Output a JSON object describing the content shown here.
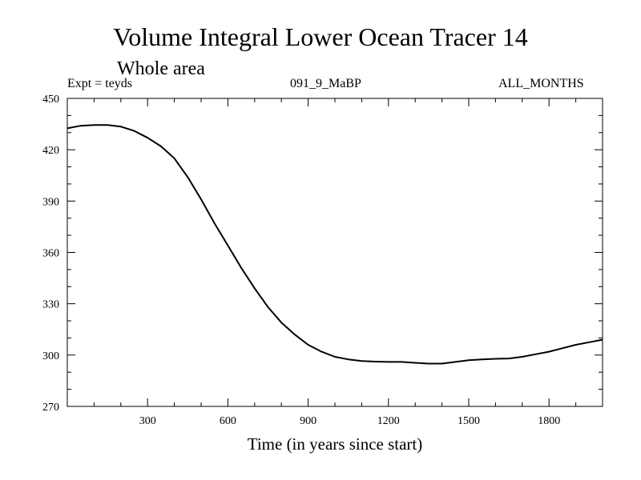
{
  "chart_data": {
    "type": "line",
    "title": "Volume Integral Lower Ocean Tracer 14",
    "subtitle": "Whole area",
    "expt_label": "Expt = teyds",
    "case_label": "091_9_MaBP",
    "months_label": "ALL_MONTHS",
    "xlabel": "Time (in years since start)",
    "ylabel": "",
    "xlim": [
      0,
      2000
    ],
    "ylim": [
      270,
      450
    ],
    "xticks": [
      300,
      600,
      900,
      1200,
      1500,
      1800
    ],
    "yticks": [
      270,
      300,
      330,
      360,
      390,
      420,
      450
    ],
    "grid": false,
    "series": [
      {
        "name": "Tracer 14",
        "color": "#000000",
        "x": [
          0,
          50,
          100,
          150,
          200,
          250,
          300,
          350,
          400,
          450,
          500,
          550,
          600,
          650,
          700,
          750,
          800,
          850,
          900,
          950,
          1000,
          1050,
          1100,
          1150,
          1200,
          1250,
          1300,
          1350,
          1400,
          1450,
          1500,
          1550,
          1600,
          1650,
          1700,
          1750,
          1800,
          1850,
          1900,
          1950,
          2000
        ],
        "values": [
          432.5,
          434,
          434.5,
          434.5,
          433.5,
          431,
          427,
          422,
          415,
          404,
          391,
          377,
          364,
          351,
          339,
          328,
          319,
          312,
          306,
          302,
          299,
          297.5,
          296.5,
          296.2,
          296,
          296,
          295.5,
          295,
          295,
          296,
          297,
          297.5,
          297.8,
          298,
          299,
          300.5,
          302,
          304,
          306,
          307.5,
          309
        ]
      }
    ]
  }
}
